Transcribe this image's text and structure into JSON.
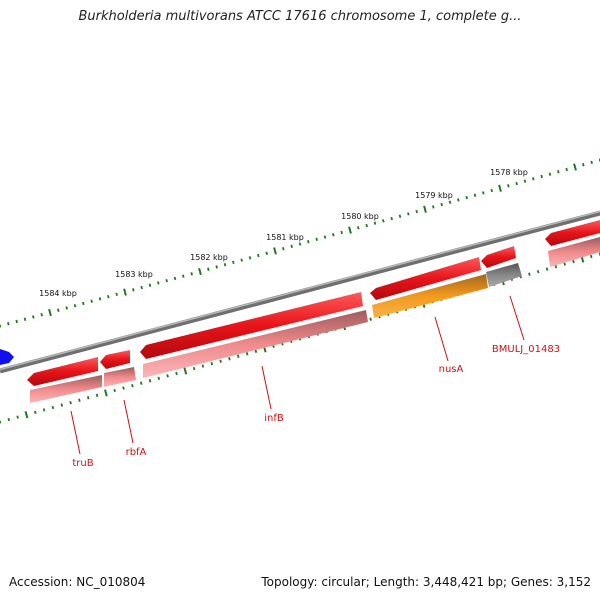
{
  "title": "Burkholderia multivorans ATCC 17616 chromosome 1, complete g...",
  "footer": {
    "accession": "Accession: NC_010804",
    "topology": "Topology: circular; Length: 3,448,421 bp; Genes: 3,152"
  },
  "ticks": [
    {
      "label": "1578 kbp"
    },
    {
      "label": "1579 kbp"
    },
    {
      "label": "1580 kbp"
    },
    {
      "label": "1581 kbp"
    },
    {
      "label": "1582 kbp"
    },
    {
      "label": "1583 kbp"
    },
    {
      "label": "1584 kbp"
    }
  ],
  "genes": [
    {
      "label": "truB",
      "color": "#dd1111"
    },
    {
      "label": "rbfA",
      "color": "#dd1111"
    },
    {
      "label": "infB",
      "color": "#dd1111"
    },
    {
      "label": "nusA",
      "color": "#dd1111"
    },
    {
      "label": "BMULJ_01483",
      "color": "#dd1111"
    }
  ],
  "colors": {
    "gene_forward": "#e8141a",
    "gene_shadow": "#f08a8c",
    "highlight": "#f39a1e",
    "pseudo": "#6e6e6e",
    "backbone": "#888888",
    "tick": "#1f7a1f",
    "marker": "#1010ee",
    "label": "#cc1010"
  }
}
